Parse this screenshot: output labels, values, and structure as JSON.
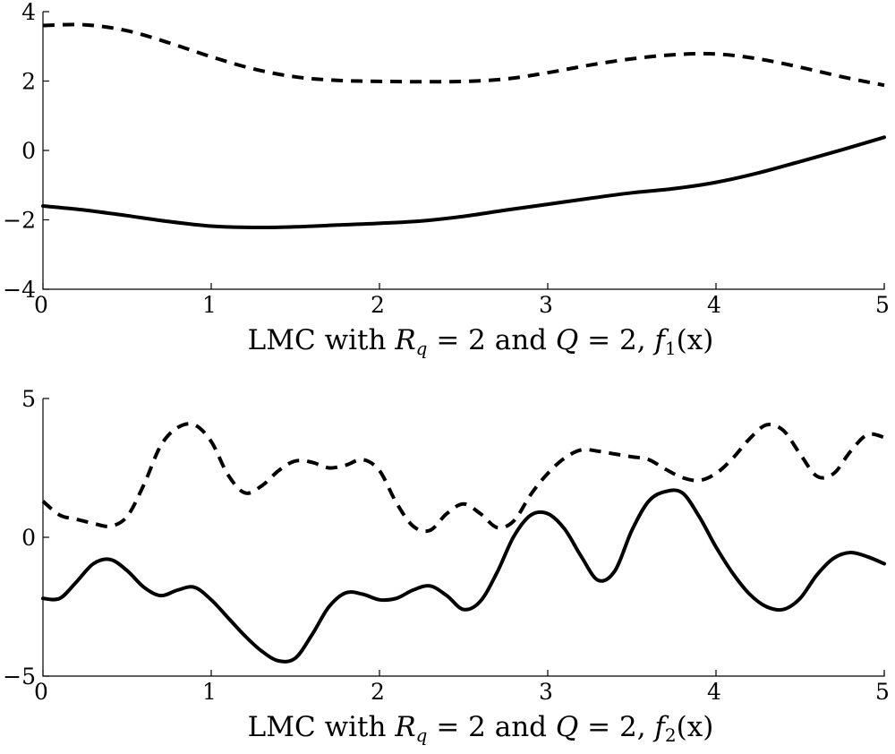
{
  "chart_data": [
    {
      "type": "line",
      "xlabel": "LMC with R_q = 2 and Q = 2, f_1(x)",
      "xlabel_parts": {
        "prefix": "LMC with ",
        "r_symbol": "R",
        "r_sub": "q",
        "r_eq": " = 2 and ",
        "q_symbol": "Q",
        "q_eq": " = 2, ",
        "f_symbol": "f",
        "f_sub": "1",
        "f_arg": "(x)"
      },
      "xlim": [
        0,
        5
      ],
      "ylim": [
        -4,
        4
      ],
      "xticks": [
        0,
        1,
        2,
        3,
        4,
        5
      ],
      "xtick_labels": [
        "0",
        "1",
        "2",
        "3",
        "4",
        "5"
      ],
      "yticks": [
        -4,
        -2,
        0,
        2,
        4
      ],
      "ytick_labels": [
        "−4",
        "−2",
        "0",
        "2",
        "4"
      ],
      "grid": false,
      "series": [
        {
          "style": "dashed",
          "color": "#000000",
          "x": [
            0,
            0.25,
            0.5,
            0.75,
            1,
            1.25,
            1.5,
            1.75,
            2,
            2.25,
            2.5,
            2.75,
            3,
            3.25,
            3.5,
            3.75,
            4,
            4.25,
            4.5,
            4.75,
            5
          ],
          "y": [
            3.6,
            3.62,
            3.45,
            3.1,
            2.7,
            2.35,
            2.12,
            2.02,
            1.99,
            1.98,
            1.99,
            2.06,
            2.24,
            2.46,
            2.64,
            2.76,
            2.78,
            2.64,
            2.4,
            2.12,
            1.88
          ]
        },
        {
          "style": "solid",
          "color": "#000000",
          "x": [
            0,
            0.25,
            0.5,
            0.75,
            1,
            1.25,
            1.5,
            1.75,
            2,
            2.25,
            2.5,
            2.75,
            3,
            3.25,
            3.5,
            3.75,
            4,
            4.25,
            4.5,
            4.75,
            5
          ],
          "y": [
            -1.6,
            -1.72,
            -1.88,
            -2.05,
            -2.18,
            -2.22,
            -2.2,
            -2.15,
            -2.1,
            -2.03,
            -1.9,
            -1.72,
            -1.55,
            -1.38,
            -1.22,
            -1.1,
            -0.92,
            -0.65,
            -0.32,
            0.02,
            0.38
          ]
        }
      ]
    },
    {
      "type": "line",
      "xlabel": "LMC with R_q = 2 and Q = 2, f_2(x)",
      "xlabel_parts": {
        "prefix": "LMC with ",
        "r_symbol": "R",
        "r_sub": "q",
        "r_eq": " = 2 and ",
        "q_symbol": "Q",
        "q_eq": " = 2, ",
        "f_symbol": "f",
        "f_sub": "2",
        "f_arg": "(x)"
      },
      "xlim": [
        0,
        5
      ],
      "ylim": [
        -5,
        5
      ],
      "xticks": [
        0,
        1,
        2,
        3,
        4,
        5
      ],
      "xtick_labels": [
        "0",
        "1",
        "2",
        "3",
        "4",
        "5"
      ],
      "yticks": [
        -5,
        0,
        5
      ],
      "ytick_labels": [
        "−5",
        "0",
        "5"
      ],
      "grid": false,
      "series": [
        {
          "style": "dashed",
          "color": "#000000",
          "x": [
            0,
            0.1,
            0.2,
            0.3,
            0.4,
            0.5,
            0.6,
            0.7,
            0.8,
            0.9,
            1.0,
            1.1,
            1.2,
            1.3,
            1.4,
            1.5,
            1.6,
            1.7,
            1.8,
            1.9,
            2.0,
            2.1,
            2.2,
            2.3,
            2.4,
            2.5,
            2.6,
            2.7,
            2.8,
            2.9,
            3.0,
            3.1,
            3.2,
            3.3,
            3.4,
            3.5,
            3.6,
            3.7,
            3.8,
            3.9,
            4.0,
            4.1,
            4.2,
            4.3,
            4.4,
            4.5,
            4.6,
            4.7,
            4.8,
            4.9,
            5.0
          ],
          "y": [
            1.3,
            0.8,
            0.65,
            0.5,
            0.4,
            0.75,
            1.9,
            3.3,
            3.95,
            4.05,
            3.45,
            2.25,
            1.6,
            1.85,
            2.4,
            2.75,
            2.7,
            2.5,
            2.6,
            2.8,
            2.4,
            1.25,
            0.4,
            0.25,
            0.85,
            1.2,
            0.85,
            0.35,
            0.6,
            1.55,
            2.3,
            2.85,
            3.15,
            3.1,
            3.0,
            2.9,
            2.8,
            2.45,
            2.15,
            2.05,
            2.3,
            2.85,
            3.55,
            4.05,
            3.85,
            3.0,
            2.2,
            2.3,
            3.1,
            3.7,
            3.6
          ]
        },
        {
          "style": "solid",
          "color": "#000000",
          "x": [
            0,
            0.1,
            0.2,
            0.3,
            0.4,
            0.5,
            0.6,
            0.7,
            0.8,
            0.9,
            1.0,
            1.1,
            1.2,
            1.3,
            1.4,
            1.5,
            1.6,
            1.7,
            1.8,
            1.9,
            2.0,
            2.1,
            2.2,
            2.3,
            2.4,
            2.5,
            2.6,
            2.7,
            2.8,
            2.9,
            3.0,
            3.1,
            3.2,
            3.3,
            3.4,
            3.5,
            3.6,
            3.7,
            3.8,
            3.9,
            4.0,
            4.1,
            4.2,
            4.3,
            4.4,
            4.5,
            4.6,
            4.7,
            4.8,
            4.9,
            5.0
          ],
          "y": [
            -2.2,
            -2.2,
            -1.6,
            -0.95,
            -0.8,
            -1.2,
            -1.8,
            -2.1,
            -1.9,
            -1.8,
            -2.25,
            -2.9,
            -3.55,
            -4.1,
            -4.45,
            -4.35,
            -3.5,
            -2.5,
            -2.0,
            -2.05,
            -2.25,
            -2.2,
            -1.9,
            -1.75,
            -2.1,
            -2.6,
            -2.3,
            -1.25,
            0.05,
            0.8,
            0.85,
            0.3,
            -0.7,
            -1.55,
            -1.2,
            0.25,
            1.3,
            1.65,
            1.6,
            0.75,
            -0.35,
            -1.3,
            -2.05,
            -2.5,
            -2.6,
            -2.2,
            -1.35,
            -0.75,
            -0.55,
            -0.7,
            -0.95
          ]
        }
      ]
    }
  ]
}
